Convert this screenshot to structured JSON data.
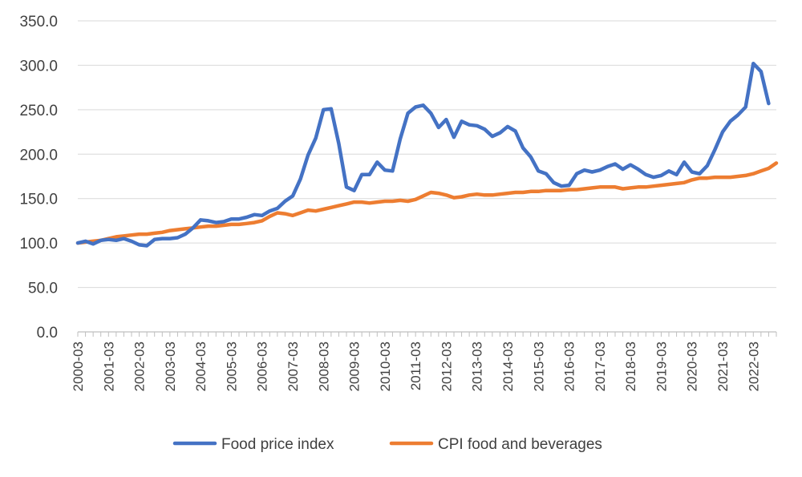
{
  "chart_data": {
    "type": "line",
    "title": "",
    "xlabel": "",
    "ylabel": "",
    "ylim": [
      0,
      350
    ],
    "y_ticks": [
      "0.0",
      "50.0",
      "100.0",
      "150.0",
      "200.0",
      "250.0",
      "300.0",
      "350.0"
    ],
    "x_tick_labels": [
      "2000-03",
      "2001-03",
      "2002-03",
      "2003-03",
      "2004-03",
      "2005-03",
      "2006-03",
      "2007-03",
      "2008-03",
      "2009-03",
      "2010-03",
      "2011-03",
      "2012-03",
      "2013-03",
      "2014-03",
      "2015-03",
      "2016-03",
      "2017-03",
      "2018-03",
      "2019-03",
      "2020-03",
      "2021-03",
      "2022-03"
    ],
    "x_start": "2000-03",
    "x_frequency": "quarterly",
    "grid": "horizontal",
    "legend_position": "bottom",
    "series": [
      {
        "name": "Food price index",
        "color": "#4472C4",
        "values": [
          100,
          102,
          99,
          103,
          104,
          103,
          105,
          102,
          98,
          97,
          104,
          105,
          105,
          106,
          110,
          117,
          126,
          125,
          123,
          124,
          127,
          127,
          129,
          132,
          131,
          136,
          139,
          147,
          153,
          172,
          199,
          218,
          250,
          251,
          212,
          163,
          159,
          177,
          177,
          191,
          182,
          181,
          217,
          246,
          253,
          255,
          246,
          230,
          239,
          219,
          237,
          233,
          232,
          228,
          220,
          224,
          231,
          226,
          207,
          197,
          181,
          178,
          168,
          164,
          165,
          178,
          182,
          180,
          182,
          186,
          189,
          183,
          188,
          183,
          177,
          174,
          176,
          181,
          177,
          191,
          180,
          178,
          187,
          205,
          225,
          237,
          244,
          253,
          302,
          293,
          257
        ]
      },
      {
        "name": "CPI food and beverages",
        "color": "#ED7D31",
        "values": [
          100,
          101,
          102,
          103,
          105,
          107,
          108,
          109,
          110,
          110,
          111,
          112,
          114,
          115,
          116,
          117,
          118,
          119,
          119,
          120,
          121,
          121,
          122,
          123,
          125,
          130,
          134,
          133,
          131,
          134,
          137,
          136,
          138,
          140,
          142,
          144,
          146,
          146,
          145,
          146,
          147,
          147,
          148,
          147,
          149,
          153,
          157,
          156,
          154,
          151,
          152,
          154,
          155,
          154,
          154,
          155,
          156,
          157,
          157,
          158,
          158,
          159,
          159,
          159,
          160,
          160,
          161,
          162,
          163,
          163,
          163,
          161,
          162,
          163,
          163,
          164,
          165,
          166,
          167,
          168,
          171,
          173,
          173,
          174,
          174,
          174,
          175,
          176,
          178,
          181,
          184,
          190
        ]
      }
    ]
  }
}
